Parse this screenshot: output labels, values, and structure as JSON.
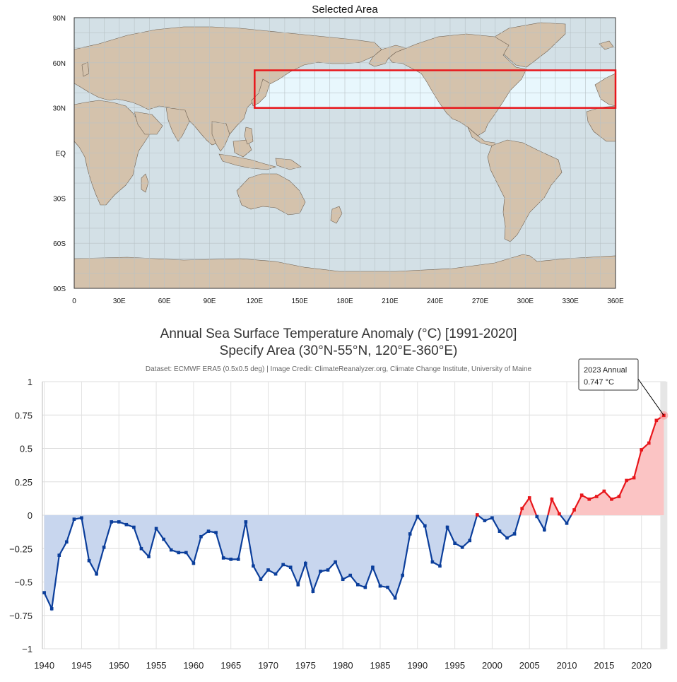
{
  "map": {
    "title": "Selected Area",
    "lat_labels": [
      "90N",
      "60N",
      "30N",
      "EQ",
      "30S",
      "60S",
      "90S"
    ],
    "lon_labels": [
      "0",
      "30E",
      "60E",
      "90E",
      "120E",
      "150E",
      "180E",
      "210E",
      "240E",
      "270E",
      "300E",
      "330E",
      "360E"
    ],
    "selection": {
      "lat_min": 30,
      "lat_max": 55,
      "lon_min": 120,
      "lon_max": 360,
      "color": "#e8161b"
    },
    "colors": {
      "ocean": "#d3e0e6",
      "land": "#d4c2ac",
      "grid": "#b8c2c6",
      "selection_fill": "#e8f7fd"
    }
  },
  "chart": {
    "title": "Annual Sea Surface Temperature Anomaly (°C) [1991-2020]",
    "subtitle": "Specify Area (30°N-55°N, 120°E-360°E)",
    "credit": "Dataset: ECMWF ERA5 (0.5x0.5 deg) | Image Credit: ClimateReanalyzer.org, Climate Change Institute, University of Maine",
    "tooltip_title": "2023 Annual",
    "tooltip_value": "0.747 °C"
  },
  "chart_data": {
    "type": "area",
    "title": "Annual Sea Surface Temperature Anomaly (°C) [1991-2020]",
    "subtitle": "Specify Area (30°N-55°N, 120°E-360°E)",
    "xlabel": "",
    "ylabel": "",
    "xlim": [
      1940,
      2023
    ],
    "ylim": [
      -1,
      1
    ],
    "y_ticks": [
      "1",
      "0.75",
      "0.5",
      "0.25",
      "0",
      "−0.25",
      "−0.5",
      "−0.75",
      "−1"
    ],
    "x_ticks": [
      "1940",
      "1945",
      "1950",
      "1955",
      "1960",
      "1965",
      "1970",
      "1975",
      "1980",
      "1985",
      "1990",
      "1995",
      "2000",
      "2005",
      "2010",
      "2015",
      "2020"
    ],
    "grid": true,
    "colors": {
      "positive": "#e8161b",
      "negative": "#0b3e9b",
      "positive_fill": "#fbc4c4",
      "negative_fill": "#c8d6ee",
      "highlight": "#e6e6e6"
    },
    "x": [
      1940,
      1941,
      1942,
      1943,
      1944,
      1945,
      1946,
      1947,
      1948,
      1949,
      1950,
      1951,
      1952,
      1953,
      1954,
      1955,
      1956,
      1957,
      1958,
      1959,
      1960,
      1961,
      1962,
      1963,
      1964,
      1965,
      1966,
      1967,
      1968,
      1969,
      1970,
      1971,
      1972,
      1973,
      1974,
      1975,
      1976,
      1977,
      1978,
      1979,
      1980,
      1981,
      1982,
      1983,
      1984,
      1985,
      1986,
      1987,
      1988,
      1989,
      1990,
      1991,
      1992,
      1993,
      1994,
      1995,
      1996,
      1997,
      1998,
      1999,
      2000,
      2001,
      2002,
      2003,
      2004,
      2005,
      2006,
      2007,
      2008,
      2009,
      2010,
      2011,
      2012,
      2013,
      2014,
      2015,
      2016,
      2017,
      2018,
      2019,
      2020,
      2021,
      2022,
      2023
    ],
    "y": [
      -0.58,
      -0.7,
      -0.3,
      -0.2,
      -0.03,
      -0.02,
      -0.34,
      -0.44,
      -0.24,
      -0.05,
      -0.05,
      -0.07,
      -0.09,
      -0.25,
      -0.31,
      -0.1,
      -0.18,
      -0.26,
      -0.28,
      -0.28,
      -0.36,
      -0.16,
      -0.12,
      -0.13,
      -0.32,
      -0.33,
      -0.33,
      -0.05,
      -0.38,
      -0.48,
      -0.41,
      -0.44,
      -0.37,
      -0.39,
      -0.52,
      -0.36,
      -0.57,
      -0.42,
      -0.41,
      -0.35,
      -0.48,
      -0.45,
      -0.52,
      -0.54,
      -0.39,
      -0.53,
      -0.54,
      -0.62,
      -0.45,
      -0.14,
      -0.01,
      -0.08,
      -0.35,
      -0.38,
      -0.09,
      -0.21,
      -0.24,
      -0.19,
      0.003,
      -0.04,
      -0.02,
      -0.12,
      -0.17,
      -0.14,
      0.05,
      0.13,
      -0.01,
      -0.11,
      0.12,
      0.01,
      -0.06,
      0.04,
      0.15,
      0.12,
      0.14,
      0.18,
      0.12,
      0.14,
      0.26,
      0.28,
      0.49,
      0.54,
      0.71,
      0.747
    ],
    "highlight_year": 2023
  }
}
